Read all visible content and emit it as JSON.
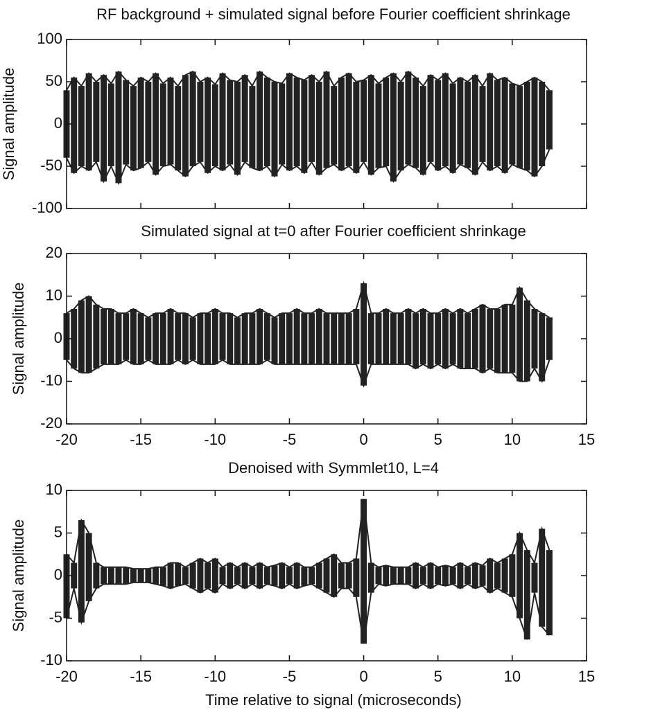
{
  "chart_data": [
    {
      "type": "line",
      "title": "RF background + simulated signal before Fourier coefficient shrinkage",
      "ylabel": "Signal amplitude",
      "color": "#222222",
      "xlim": [
        -20,
        15
      ],
      "ylim": [
        -100,
        100
      ],
      "yticks": [
        -100,
        -50,
        0,
        50,
        100
      ],
      "x": [
        -20,
        -19.5,
        -19,
        -18.5,
        -18,
        -17.5,
        -17,
        -16.5,
        -16,
        -15.5,
        -15,
        -14.5,
        -14,
        -13.5,
        -13,
        -12.5,
        -12,
        -11.5,
        -11,
        -10.5,
        -10,
        -9.5,
        -9,
        -8.5,
        -8,
        -7.5,
        -7,
        -6.5,
        -6,
        -5.5,
        -5,
        -4.5,
        -4,
        -3.5,
        -3,
        -2.5,
        -2,
        -1.5,
        -1,
        -0.5,
        0,
        0.5,
        1,
        1.5,
        2,
        2.5,
        3,
        3.5,
        4,
        4.5,
        5,
        5.5,
        6,
        6.5,
        7,
        7.5,
        8,
        8.5,
        9,
        9.5,
        10,
        10.5,
        11,
        11.5,
        12,
        12.5
      ],
      "series": [
        {
          "values": [
            40,
            55,
            45,
            60,
            50,
            58,
            48,
            62,
            52,
            45,
            55,
            50,
            60,
            48,
            55,
            45,
            58,
            62,
            50,
            55,
            47,
            60,
            52,
            50,
            58,
            45,
            62,
            55,
            50,
            48,
            60,
            55,
            52,
            58,
            50,
            62,
            45,
            55,
            60,
            50,
            52,
            58,
            48,
            55,
            60,
            50,
            62,
            55,
            45,
            58,
            52,
            60,
            48,
            55,
            50,
            58,
            45,
            60,
            52,
            55,
            48,
            45,
            50,
            55,
            50,
            40
          ]
        },
        {
          "values": [
            -40,
            -58,
            -50,
            -55,
            -45,
            -68,
            -50,
            -70,
            -48,
            -55,
            -52,
            -45,
            -60,
            -50,
            -48,
            -55,
            -62,
            -50,
            -45,
            -58,
            -50,
            -55,
            -48,
            -60,
            -45,
            -52,
            -55,
            -50,
            -62,
            -48,
            -55,
            -50,
            -58,
            -45,
            -60,
            -52,
            -48,
            -55,
            -50,
            -58,
            -45,
            -60,
            -52,
            -50,
            -68,
            -55,
            -48,
            -52,
            -60,
            -45,
            -55,
            -50,
            -58,
            -48,
            -52,
            -60,
            -45,
            -55,
            -50,
            -58,
            -48,
            -52,
            -55,
            -62,
            -50,
            -30
          ]
        }
      ]
    },
    {
      "type": "line",
      "title": "Simulated signal at t=0 after Fourier coefficient shrinkage",
      "ylabel": "Signal amplitude",
      "color": "#222222",
      "xlim": [
        -20,
        15
      ],
      "ylim": [
        -20,
        20
      ],
      "yticks": [
        -20,
        -10,
        0,
        10,
        20
      ],
      "xticks": [
        -20,
        -15,
        -10,
        -5,
        0,
        5,
        10,
        15
      ],
      "x": [
        -20,
        -19.5,
        -19,
        -18.5,
        -18,
        -17.5,
        -17,
        -16.5,
        -16,
        -15.5,
        -15,
        -14.5,
        -14,
        -13.5,
        -13,
        -12.5,
        -12,
        -11.5,
        -11,
        -10.5,
        -10,
        -9.5,
        -9,
        -8.5,
        -8,
        -7.5,
        -7,
        -6.5,
        -6,
        -5.5,
        -5,
        -4.5,
        -4,
        -3.5,
        -3,
        -2.5,
        -2,
        -1.5,
        -1,
        -0.5,
        0,
        0.5,
        1,
        1.5,
        2,
        2.5,
        3,
        3.5,
        4,
        4.5,
        5,
        5.5,
        6,
        6.5,
        7,
        7.5,
        8,
        8.5,
        9,
        9.5,
        10,
        10.5,
        11,
        11.5,
        12,
        12.5
      ],
      "series": [
        {
          "values": [
            6,
            7,
            9,
            10,
            8,
            7,
            7,
            6,
            6,
            7,
            6,
            5,
            6,
            6,
            7,
            6,
            6,
            5,
            6,
            6,
            7,
            6,
            6,
            5,
            6,
            6,
            7,
            6,
            5,
            6,
            6,
            7,
            6,
            6,
            7,
            6,
            6,
            6,
            6,
            7,
            13,
            6,
            6,
            7,
            6,
            6,
            7,
            6,
            7,
            6,
            6,
            7,
            6,
            7,
            6,
            7,
            8,
            7,
            7,
            8,
            8,
            12,
            9,
            7,
            6,
            5
          ]
        },
        {
          "values": [
            -5,
            -7,
            -8,
            -8,
            -7,
            -6,
            -6,
            -6,
            -5,
            -6,
            -6,
            -5,
            -6,
            -6,
            -6,
            -5,
            -6,
            -5,
            -6,
            -6,
            -6,
            -5,
            -6,
            -6,
            -6,
            -6,
            -6,
            -5,
            -6,
            -6,
            -6,
            -6,
            -6,
            -6,
            -6,
            -6,
            -6,
            -6,
            -6,
            -6,
            -11,
            -6,
            -6,
            -6,
            -6,
            -6,
            -6,
            -7,
            -6,
            -7,
            -6,
            -7,
            -6,
            -7,
            -7,
            -7,
            -8,
            -7,
            -8,
            -8,
            -8,
            -10,
            -10,
            -7,
            -10,
            -5
          ]
        }
      ]
    },
    {
      "type": "line",
      "title": "Denoised with Symmlet10, L=4",
      "ylabel": "Signal amplitude",
      "xlabel": "Time relative to signal (microseconds)",
      "color": "#222222",
      "xlim": [
        -20,
        15
      ],
      "ylim": [
        -10,
        10
      ],
      "yticks": [
        -10,
        -5,
        0,
        5,
        10
      ],
      "xticks": [
        -20,
        -15,
        -10,
        -5,
        0,
        5,
        10,
        15
      ],
      "x": [
        -20,
        -19.5,
        -19,
        -18.5,
        -18,
        -17.5,
        -17,
        -16.5,
        -16,
        -15.5,
        -15,
        -14.5,
        -14,
        -13.5,
        -13,
        -12.5,
        -12,
        -11.5,
        -11,
        -10.5,
        -10,
        -9.5,
        -9,
        -8.5,
        -8,
        -7.5,
        -7,
        -6.5,
        -6,
        -5.5,
        -5,
        -4.5,
        -4,
        -3.5,
        -3,
        -2.5,
        -2,
        -1.5,
        -1,
        -0.5,
        0,
        0.5,
        1,
        1.5,
        2,
        2.5,
        3,
        3.5,
        4,
        4.5,
        5,
        5.5,
        6,
        6.5,
        7,
        7.5,
        8,
        8.5,
        9,
        9.5,
        10,
        10.5,
        11,
        11.5,
        12,
        12.5
      ],
      "series": [
        {
          "values": [
            2.5,
            1.5,
            6.5,
            5,
            1.5,
            1,
            1,
            1,
            1,
            0.8,
            0.8,
            0.8,
            1,
            1,
            1.5,
            1.5,
            1,
            1.5,
            2,
            1.5,
            2,
            1,
            1.5,
            1,
            1.5,
            1,
            1.5,
            1,
            1.2,
            1.5,
            1,
            1.5,
            1,
            1,
            1.5,
            2,
            2.5,
            1.5,
            1.5,
            2,
            9,
            1.5,
            1,
            1.2,
            1,
            1,
            1,
            1.5,
            1,
            1.5,
            1,
            1.2,
            1,
            1.5,
            1,
            1.5,
            1.2,
            2,
            1.5,
            2,
            2.5,
            5,
            3,
            1.5,
            5.5,
            3
          ]
        },
        {
          "values": [
            -5,
            -1.5,
            -5.5,
            -3,
            -1.5,
            -1,
            -1,
            -1,
            -1,
            -0.8,
            -0.8,
            -0.8,
            -1,
            -1.2,
            -1.5,
            -1.2,
            -1,
            -1.5,
            -2,
            -1.5,
            -2,
            -1,
            -1.5,
            -1,
            -1.5,
            -1,
            -1.5,
            -1,
            -1.2,
            -1.5,
            -1,
            -1.5,
            -1.2,
            -1,
            -1.5,
            -2,
            -2.5,
            -1.5,
            -1.5,
            -2.5,
            -8,
            -2,
            -1,
            -1.2,
            -1,
            -1,
            -1,
            -1.5,
            -1,
            -1.5,
            -1,
            -1.2,
            -1,
            -1.5,
            -1,
            -1.5,
            -1.2,
            -2,
            -1.5,
            -2,
            -2.5,
            -5,
            -7.5,
            -2,
            -6,
            -7
          ]
        }
      ]
    }
  ]
}
